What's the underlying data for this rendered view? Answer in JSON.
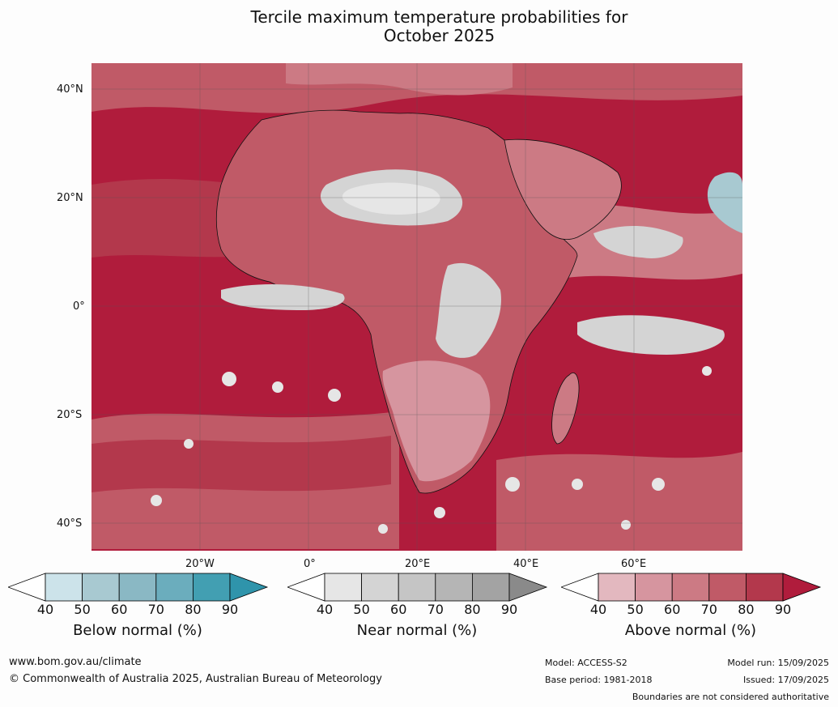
{
  "title_line1": "Tercile maximum temperature probabilities for",
  "title_line2": "October 2025",
  "lat_labels": [
    "40°N",
    "20°N",
    "0°",
    "20°S",
    "40°S"
  ],
  "lon_labels": [
    "20°W",
    "0°",
    "20°E",
    "40°E",
    "60°E"
  ],
  "colorbars": [
    {
      "label": "Below normal (%)",
      "ticks": [
        "40",
        "50",
        "60",
        "70",
        "80",
        "90"
      ],
      "colors": [
        "#ffffff",
        "#cce3ea",
        "#a8c9d1",
        "#8ab8c4",
        "#6badbd",
        "#429fb2",
        "#2f94ab"
      ]
    },
    {
      "label": "Near normal (%)",
      "ticks": [
        "40",
        "50",
        "60",
        "70",
        "80",
        "90"
      ],
      "colors": [
        "#ffffff",
        "#e6e6e6",
        "#d4d4d4",
        "#c5c5c5",
        "#b5b5b5",
        "#a3a3a3",
        "#8a8a8a"
      ]
    },
    {
      "label": "Above normal (%)",
      "ticks": [
        "40",
        "50",
        "60",
        "70",
        "80",
        "90"
      ],
      "colors": [
        "#ffffff",
        "#e3b8bf",
        "#d6959f",
        "#cc7a84",
        "#c05a67",
        "#b3384c",
        "#b01c3c"
      ]
    }
  ],
  "map_colors": {
    "above_90": "#b01c3c",
    "above_80": "#b3384c",
    "above_70": "#c05a67",
    "above_60": "#cc7a84",
    "above_50": "#d6959f",
    "above_40": "#e3b8bf",
    "near_50": "#e6e6e6",
    "near_60": "#d4d4d4",
    "near_70": "#c5c5c5",
    "below_50": "#cce3ea",
    "below_60": "#a8c9d1"
  },
  "footer": {
    "website": "www.bom.gov.au/climate",
    "copyright": "© Commonwealth of Australia 2025, Australian Bureau of Meteorology",
    "model": "Model: ACCESS-S2",
    "base_period": "Base period: 1981-2018",
    "model_run": "Model run: 15/09/2025",
    "issued": "Issued: 17/09/2025",
    "disclaimer": "Boundaries are not considered authoritative"
  }
}
